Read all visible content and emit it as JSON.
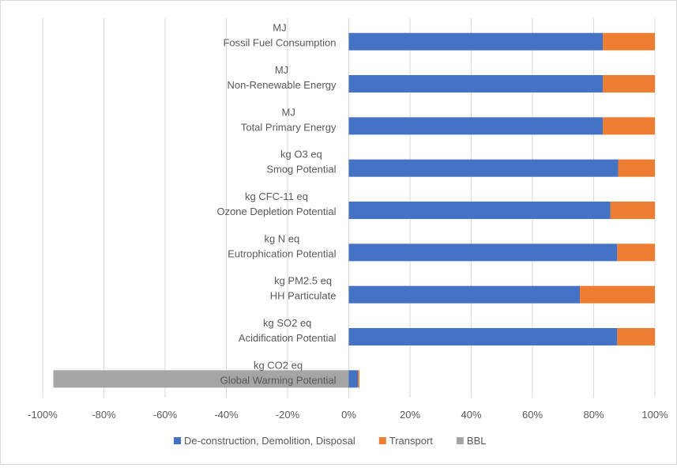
{
  "chart_data": {
    "type": "bar",
    "orientation": "horizontal",
    "stacked": "percent",
    "title": "",
    "xlabel": "",
    "ylabel": "",
    "xlim": [
      -1.0,
      1.0
    ],
    "x_ticks": [
      "-100%",
      "-80%",
      "-60%",
      "-40%",
      "-20%",
      "0%",
      "20%",
      "40%",
      "60%",
      "80%",
      "100%"
    ],
    "grid": true,
    "legend_position": "bottom",
    "categories": [
      {
        "unit": "MJ",
        "name": "Fossil Fuel Consumption"
      },
      {
        "unit": "MJ",
        "name": "Non-Renewable Energy"
      },
      {
        "unit": "MJ",
        "name": "Total Primary Energy"
      },
      {
        "unit": "kg O3 eq",
        "name": "Smog Potential"
      },
      {
        "unit": "kg CFC-11 eq",
        "name": "Ozone Depletion Potential"
      },
      {
        "unit": "kg N eq",
        "name": "Eutrophication Potential"
      },
      {
        "unit": "kg PM2.5 eq",
        "name": "HH Particulate"
      },
      {
        "unit": "kg SO2 eq",
        "name": "Acidification Potential"
      },
      {
        "unit": "kg CO2 eq",
        "name": "Global Warming Potential"
      }
    ],
    "series": [
      {
        "name": "De-construction, Demolition, Disposal",
        "color": "#4472C4",
        "values": [
          0.83,
          0.83,
          0.83,
          0.88,
          0.855,
          0.877,
          0.755,
          0.877,
          0.03
        ]
      },
      {
        "name": "Transport",
        "color": "#ED7D31",
        "values": [
          0.17,
          0.17,
          0.17,
          0.12,
          0.145,
          0.123,
          0.245,
          0.123,
          0.005
        ]
      },
      {
        "name": "BBL",
        "color": "#A5A5A5",
        "values": [
          0,
          0,
          0,
          0,
          0,
          0,
          0,
          0,
          -0.965
        ]
      }
    ]
  }
}
